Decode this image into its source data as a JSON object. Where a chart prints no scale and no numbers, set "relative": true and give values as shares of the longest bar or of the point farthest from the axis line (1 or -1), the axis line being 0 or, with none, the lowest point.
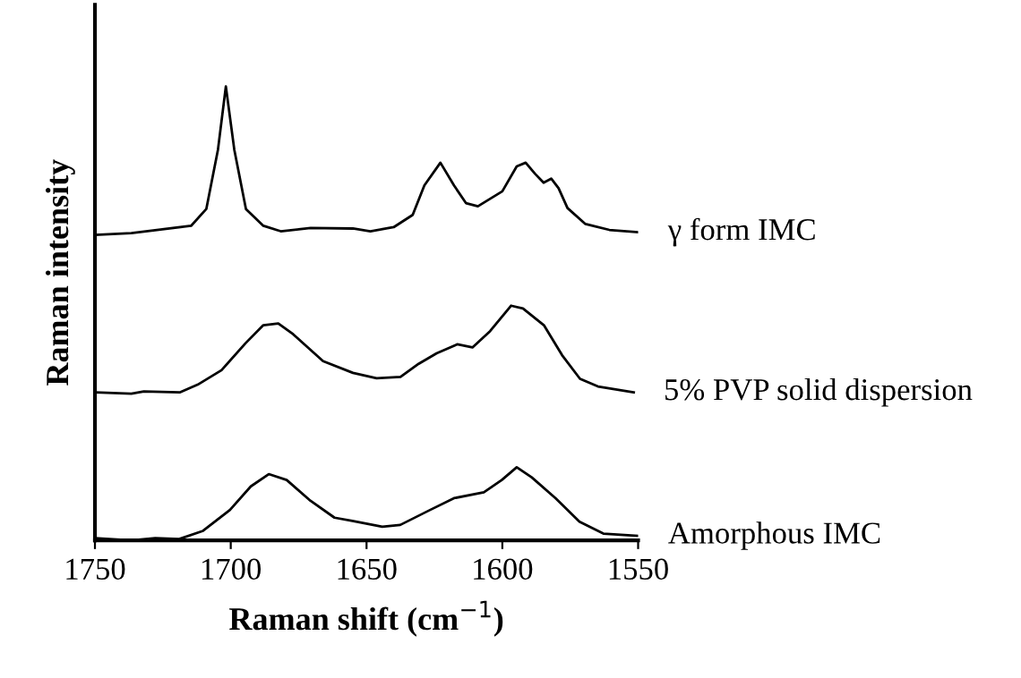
{
  "chart_data": {
    "type": "line",
    "relative": true,
    "xlabel": "Raman shift (cm$^{−1}$)",
    "ylabel": "Raman intensity",
    "xlim": [
      1750,
      1550
    ],
    "xticks": [
      1750,
      1700,
      1650,
      1600,
      1550
    ],
    "grid": false,
    "legend": false,
    "marker": "none",
    "line_style": "solid",
    "series": [
      {
        "name": "γ form IMC",
        "color": "#000000",
        "x": [
          1750,
          1736.6,
          1714.6,
          1709,
          1704.7,
          1701.8,
          1698.7,
          1694.4,
          1688,
          1681.6,
          1670.6,
          1655,
          1648.6,
          1640,
          1633,
          1628.7,
          1622.8,
          1617.8,
          1613.4,
          1609,
          1600,
          1594.7,
          1591.4,
          1588,
          1584.8,
          1582,
          1579.3,
          1576,
          1569.4,
          1560.6,
          1550
        ],
        "values": [
          0.673,
          0.677,
          0.693,
          0.73,
          0.861,
          1,
          0.861,
          0.73,
          0.693,
          0.681,
          0.688,
          0.687,
          0.681,
          0.69,
          0.717,
          0.782,
          0.832,
          0.782,
          0.743,
          0.736,
          0.769,
          0.824,
          0.832,
          0.808,
          0.788,
          0.797,
          0.776,
          0.732,
          0.697,
          0.684,
          0.679
        ]
      },
      {
        "name": "5% PVP solid dispersion",
        "color": "#000000",
        "x": [
          1750,
          1736.6,
          1732,
          1718.8,
          1712.2,
          1703.4,
          1694.6,
          1688,
          1682.5,
          1677,
          1666,
          1655,
          1646.3,
          1637.5,
          1630.8,
          1624.2,
          1616.6,
          1611,
          1604.5,
          1596.8,
          1592.4,
          1584.7,
          1578,
          1571.4,
          1564.8,
          1551.6
        ],
        "values": [
          0.326,
          0.323,
          0.328,
          0.326,
          0.343,
          0.375,
          0.434,
          0.474,
          0.478,
          0.454,
          0.395,
          0.369,
          0.357,
          0.36,
          0.389,
          0.412,
          0.432,
          0.425,
          0.461,
          0.517,
          0.511,
          0.474,
          0.408,
          0.356,
          0.339,
          0.326
        ]
      },
      {
        "name": "Amorphous IMC",
        "color": "#000000",
        "x": [
          1750,
          1736.6,
          1727.8,
          1719,
          1710.2,
          1700.3,
          1692.6,
          1686,
          1679.4,
          1670.6,
          1661.8,
          1655.2,
          1644.2,
          1637.6,
          1626.6,
          1617.8,
          1606.8,
          1600.2,
          1594.7,
          1589.2,
          1580.4,
          1571.6,
          1562.8,
          1550
        ],
        "values": [
          0.005,
          0,
          0.005,
          0.003,
          0.021,
          0.067,
          0.119,
          0.146,
          0.133,
          0.087,
          0.05,
          0.043,
          0.03,
          0.034,
          0.067,
          0.093,
          0.106,
          0.133,
          0.161,
          0.139,
          0.093,
          0.041,
          0.015,
          0.01
        ]
      }
    ]
  }
}
